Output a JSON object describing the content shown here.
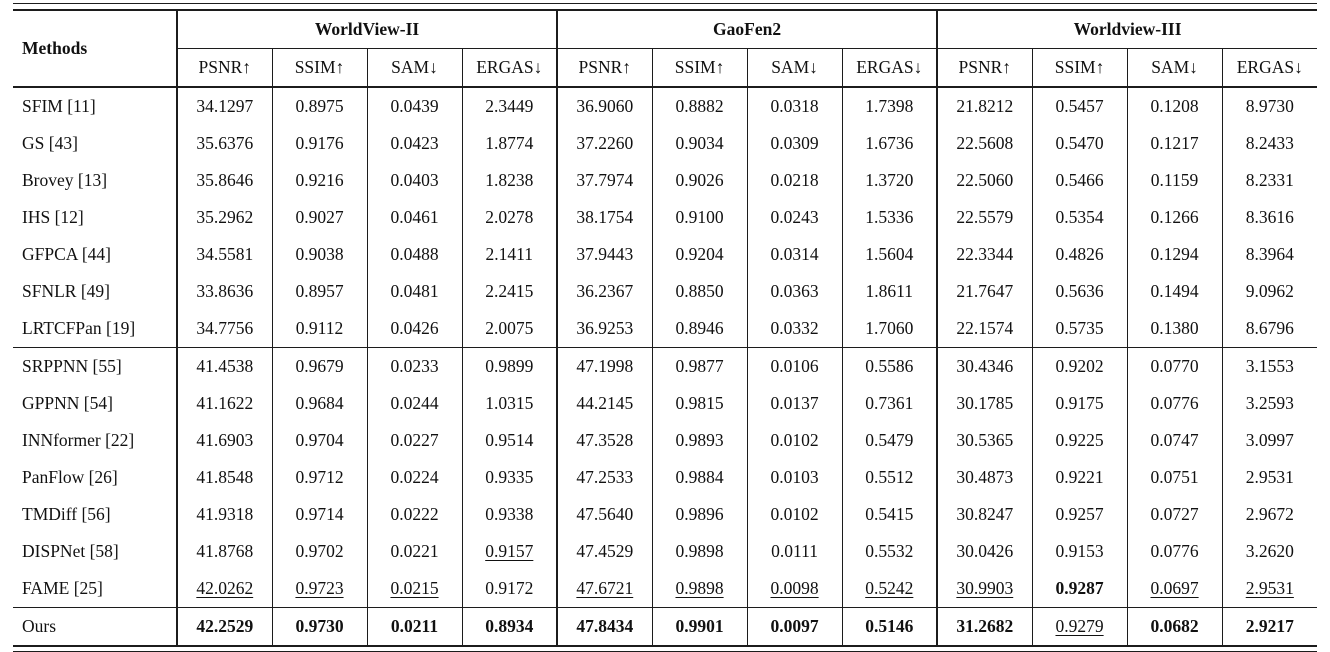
{
  "page": {
    "background": "#ffffff",
    "text_color": "#111111",
    "line_color": "#1c1c1c"
  },
  "table": {
    "methods_header": "Methods",
    "groups": [
      {
        "label": "WorldView-II",
        "metrics": [
          "PSNR↑",
          "SSIM↑",
          "SAM↓",
          "ERGAS↓"
        ]
      },
      {
        "label": "GaoFen2",
        "metrics": [
          "PSNR↑",
          "SSIM↑",
          "SAM↓",
          "ERGAS↓"
        ]
      },
      {
        "label": "Worldview-III",
        "metrics": [
          "PSNR↑",
          "SSIM↑",
          "SAM↓",
          "ERGAS↓"
        ]
      }
    ],
    "rows": [
      {
        "method": "SFIM [11]",
        "values": [
          "34.1297",
          "0.8975",
          "0.0439",
          "2.3449",
          "36.9060",
          "0.8882",
          "0.0318",
          "1.7398",
          "21.8212",
          "0.5457",
          "0.1208",
          "8.9730"
        ]
      },
      {
        "method": "GS [43]",
        "values": [
          "35.6376",
          "0.9176",
          "0.0423",
          "1.8774",
          "37.2260",
          "0.9034",
          "0.0309",
          "1.6736",
          "22.5608",
          "0.5470",
          "0.1217",
          "8.2433"
        ]
      },
      {
        "method": "Brovey [13]",
        "values": [
          "35.8646",
          "0.9216",
          "0.0403",
          "1.8238",
          "37.7974",
          "0.9026",
          "0.0218",
          "1.3720",
          "22.5060",
          "0.5466",
          "0.1159",
          "8.2331"
        ]
      },
      {
        "method": "IHS [12]",
        "values": [
          "35.2962",
          "0.9027",
          "0.0461",
          "2.0278",
          "38.1754",
          "0.9100",
          "0.0243",
          "1.5336",
          "22.5579",
          "0.5354",
          "0.1266",
          "8.3616"
        ]
      },
      {
        "method": "GFPCA [44]",
        "values": [
          "34.5581",
          "0.9038",
          "0.0488",
          "2.1411",
          "37.9443",
          "0.9204",
          "0.0314",
          "1.5604",
          "22.3344",
          "0.4826",
          "0.1294",
          "8.3964"
        ]
      },
      {
        "method": "SFNLR [49]",
        "values": [
          "33.8636",
          "0.8957",
          "0.0481",
          "2.2415",
          "36.2367",
          "0.8850",
          "0.0363",
          "1.8611",
          "21.7647",
          "0.5636",
          "0.1494",
          "9.0962"
        ]
      },
      {
        "method": "LRTCFPan [19]",
        "values": [
          "34.7756",
          "0.9112",
          "0.0426",
          "2.0075",
          "36.9253",
          "0.8946",
          "0.0332",
          "1.7060",
          "22.1574",
          "0.5735",
          "0.1380",
          "8.6796"
        ]
      },
      {
        "method": "SRPPNN [55]",
        "rule_above": true,
        "values": [
          "41.4538",
          "0.9679",
          "0.0233",
          "0.9899",
          "47.1998",
          "0.9877",
          "0.0106",
          "0.5586",
          "30.4346",
          "0.9202",
          "0.0770",
          "3.1553"
        ]
      },
      {
        "method": "GPPNN [54]",
        "values": [
          "41.1622",
          "0.9684",
          "0.0244",
          "1.0315",
          "44.2145",
          "0.9815",
          "0.0137",
          "0.7361",
          "30.1785",
          "0.9175",
          "0.0776",
          "3.2593"
        ]
      },
      {
        "method": "INNformer [22]",
        "values": [
          "41.6903",
          "0.9704",
          "0.0227",
          "0.9514",
          "47.3528",
          "0.9893",
          "0.0102",
          "0.5479",
          "30.5365",
          "0.9225",
          "0.0747",
          "3.0997"
        ]
      },
      {
        "method": "PanFlow [26]",
        "values": [
          "41.8548",
          "0.9712",
          "0.0224",
          "0.9335",
          "47.2533",
          "0.9884",
          "0.0103",
          "0.5512",
          "30.4873",
          "0.9221",
          "0.0751",
          "2.9531"
        ]
      },
      {
        "method": "TMDiff [56]",
        "values": [
          "41.9318",
          "0.9714",
          "0.0222",
          "0.9338",
          "47.5640",
          "0.9896",
          "0.0102",
          "0.5415",
          "30.8247",
          "0.9257",
          "0.0727",
          "2.9672"
        ]
      },
      {
        "method": "DISPNet [58]",
        "values": [
          "41.8768",
          "0.9702",
          "0.0221",
          "0.9157",
          "47.4529",
          "0.9898",
          "0.0111",
          "0.5532",
          "30.0426",
          "0.9153",
          "0.0776",
          "3.2620"
        ],
        "styles": [
          "",
          "",
          "",
          "u",
          "",
          "",
          "",
          "",
          "",
          "",
          "",
          ""
        ]
      },
      {
        "method": "FAME [25]",
        "values": [
          "42.0262",
          "0.9723",
          "0.0215",
          "0.9172",
          "47.6721",
          "0.9898",
          "0.0098",
          "0.5242",
          "30.9903",
          "0.9287",
          "0.0697",
          "2.9531"
        ],
        "styles": [
          "u",
          "u",
          "u",
          "",
          "u",
          "u",
          "u",
          "u",
          "u",
          "b",
          "u",
          "u"
        ]
      },
      {
        "method": "Ours",
        "rule_above": true,
        "values": [
          "42.2529",
          "0.9730",
          "0.0211",
          "0.8934",
          "47.8434",
          "0.9901",
          "0.0097",
          "0.5146",
          "31.2682",
          "0.9279",
          "0.0682",
          "2.9217"
        ],
        "styles": [
          "b",
          "b",
          "b",
          "b",
          "b",
          "b",
          "b",
          "b",
          "b",
          "u",
          "b",
          "b"
        ]
      }
    ]
  }
}
